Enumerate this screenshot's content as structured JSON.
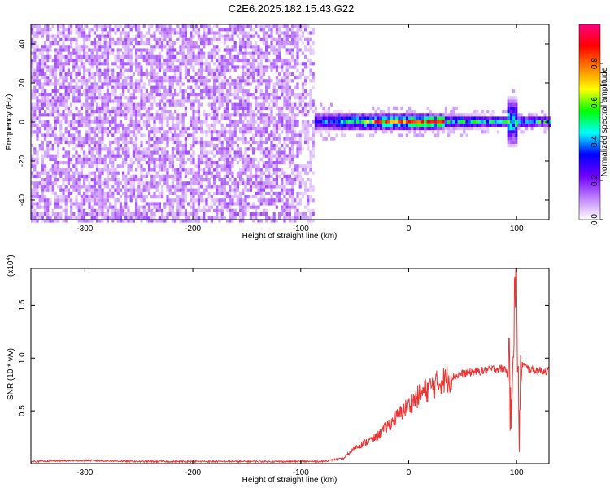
{
  "title": "C2E6.2025.182.15.43.G22",
  "chart_data": [
    {
      "type": "heatmap",
      "title": "C2E6.2025.182.15.43.G22",
      "xlabel": "Height of straight line (km)",
      "ylabel": "Frequency (Hz)",
      "xlim": [
        -350,
        130
      ],
      "ylim": [
        -50,
        50
      ],
      "x_ticks": [
        -300,
        -200,
        -100,
        0,
        100
      ],
      "x_tick_labels": [
        "-300",
        "-200",
        "-100",
        "0",
        "100"
      ],
      "y_ticks": [
        -40,
        -20,
        0,
        20,
        40
      ],
      "y_tick_labels": [
        "-40",
        "-20",
        "0",
        "20",
        "40"
      ],
      "colorbar": {
        "label": "Normalized spectral amplitude",
        "range": [
          0,
          1
        ],
        "ticks": [
          0.0,
          0.2,
          0.4,
          0.6,
          0.8
        ],
        "tick_labels": [
          "0.0",
          "0.2",
          "0.4",
          "0.6",
          "0.8"
        ],
        "colors": [
          "#ffffff",
          "#c080ff",
          "#7000ff",
          "#0000ff",
          "#00ffff",
          "#00ff00",
          "#ffff00",
          "#ff8000",
          "#ff0000",
          "#ff0080"
        ]
      },
      "features": {
        "noise_region_x": [
          -350,
          -88
        ],
        "noise_amplitude": 0.15,
        "signal_band_x": [
          -88,
          130
        ],
        "signal_center_freq": 1,
        "signal_peak_amplitude": 0.9,
        "spike_x": 95
      }
    },
    {
      "type": "line",
      "xlabel": "Height of straight line (km)",
      "ylabel": "SNR (10 * v/v)",
      "y_multiplier": "(x10^4)",
      "y_multiplier_base": "(x10",
      "y_multiplier_exp": "4",
      "xlim": [
        -350,
        130
      ],
      "ylim": [
        0,
        1.85
      ],
      "x_ticks": [
        -300,
        -200,
        -100,
        0,
        100
      ],
      "x_tick_labels": [
        "-300",
        "-200",
        "-100",
        "0",
        "100"
      ],
      "y_ticks": [
        0.5,
        1.0,
        1.5
      ],
      "y_tick_labels": [
        "0.5",
        "1.0",
        "1.5"
      ],
      "line_color": "#ee3333",
      "series": [
        {
          "x": [
            -350,
            -300,
            -250,
            -200,
            -150,
            -100,
            -80,
            -60,
            -50,
            -40,
            -30,
            -20,
            -10,
            0,
            10,
            20,
            30,
            40,
            50,
            60,
            70,
            80,
            90,
            95,
            98,
            100,
            102,
            105,
            110,
            120,
            130
          ],
          "y": [
            0.02,
            0.03,
            0.02,
            0.02,
            0.02,
            0.02,
            0.02,
            0.05,
            0.15,
            0.2,
            0.25,
            0.35,
            0.45,
            0.55,
            0.65,
            0.72,
            0.78,
            0.82,
            0.85,
            0.87,
            0.88,
            0.9,
            0.9,
            0.7,
            1.5,
            1.85,
            0.3,
            0.95,
            0.9,
            0.88,
            0.88
          ]
        }
      ]
    }
  ]
}
